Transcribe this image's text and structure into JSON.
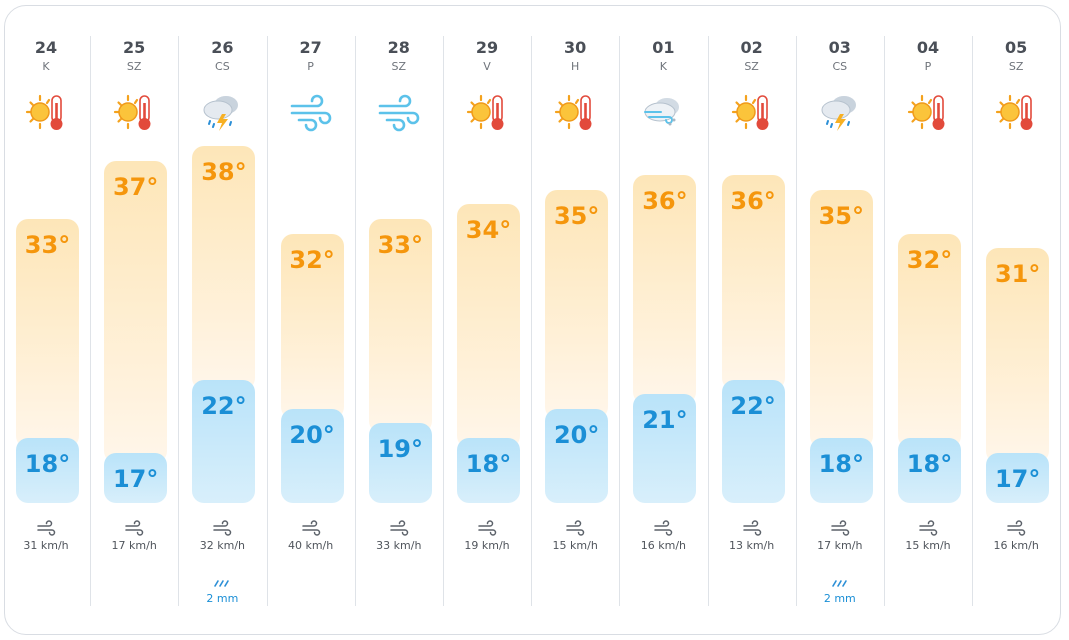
{
  "forecast": {
    "days": [
      {
        "date": "24",
        "weekday": "K",
        "icon": "sunny-hot-icon",
        "high": "33°",
        "low": "18°",
        "wind": "31 km/h",
        "rain": ""
      },
      {
        "date": "25",
        "weekday": "SZ",
        "icon": "sunny-hot-icon",
        "high": "37°",
        "low": "17°",
        "wind": "17 km/h",
        "rain": ""
      },
      {
        "date": "26",
        "weekday": "CS",
        "icon": "thunderstorm-icon",
        "high": "38°",
        "low": "22°",
        "wind": "32 km/h",
        "rain": "2 mm"
      },
      {
        "date": "27",
        "weekday": "P",
        "icon": "windy-icon",
        "high": "32°",
        "low": "20°",
        "wind": "40 km/h",
        "rain": ""
      },
      {
        "date": "28",
        "weekday": "SZ",
        "icon": "windy-icon",
        "high": "33°",
        "low": "19°",
        "wind": "33 km/h",
        "rain": ""
      },
      {
        "date": "29",
        "weekday": "V",
        "icon": "sunny-hot-icon",
        "high": "34°",
        "low": "18°",
        "wind": "19 km/h",
        "rain": ""
      },
      {
        "date": "30",
        "weekday": "H",
        "icon": "sunny-hot-icon",
        "high": "35°",
        "low": "20°",
        "wind": "15 km/h",
        "rain": ""
      },
      {
        "date": "01",
        "weekday": "K",
        "icon": "cloudy-windy-icon",
        "high": "36°",
        "low": "21°",
        "wind": "16 km/h",
        "rain": ""
      },
      {
        "date": "02",
        "weekday": "SZ",
        "icon": "sunny-hot-icon",
        "high": "36°",
        "low": "22°",
        "wind": "13 km/h",
        "rain": ""
      },
      {
        "date": "03",
        "weekday": "CS",
        "icon": "thunderstorm-icon",
        "high": "35°",
        "low": "18°",
        "wind": "17 km/h",
        "rain": "2 mm"
      },
      {
        "date": "04",
        "weekday": "P",
        "icon": "sunny-hot-icon",
        "high": "32°",
        "low": "18°",
        "wind": "15 km/h",
        "rain": ""
      },
      {
        "date": "05",
        "weekday": "SZ",
        "icon": "sunny-hot-icon",
        "high": "31°",
        "low": "17°",
        "wind": "16 km/h",
        "rain": ""
      }
    ]
  },
  "colors": {
    "high_text": "#f5960c",
    "low_text": "#1b8fd6",
    "high_bar": "#fde6b8",
    "low_bar": "#b9e3f9"
  }
}
